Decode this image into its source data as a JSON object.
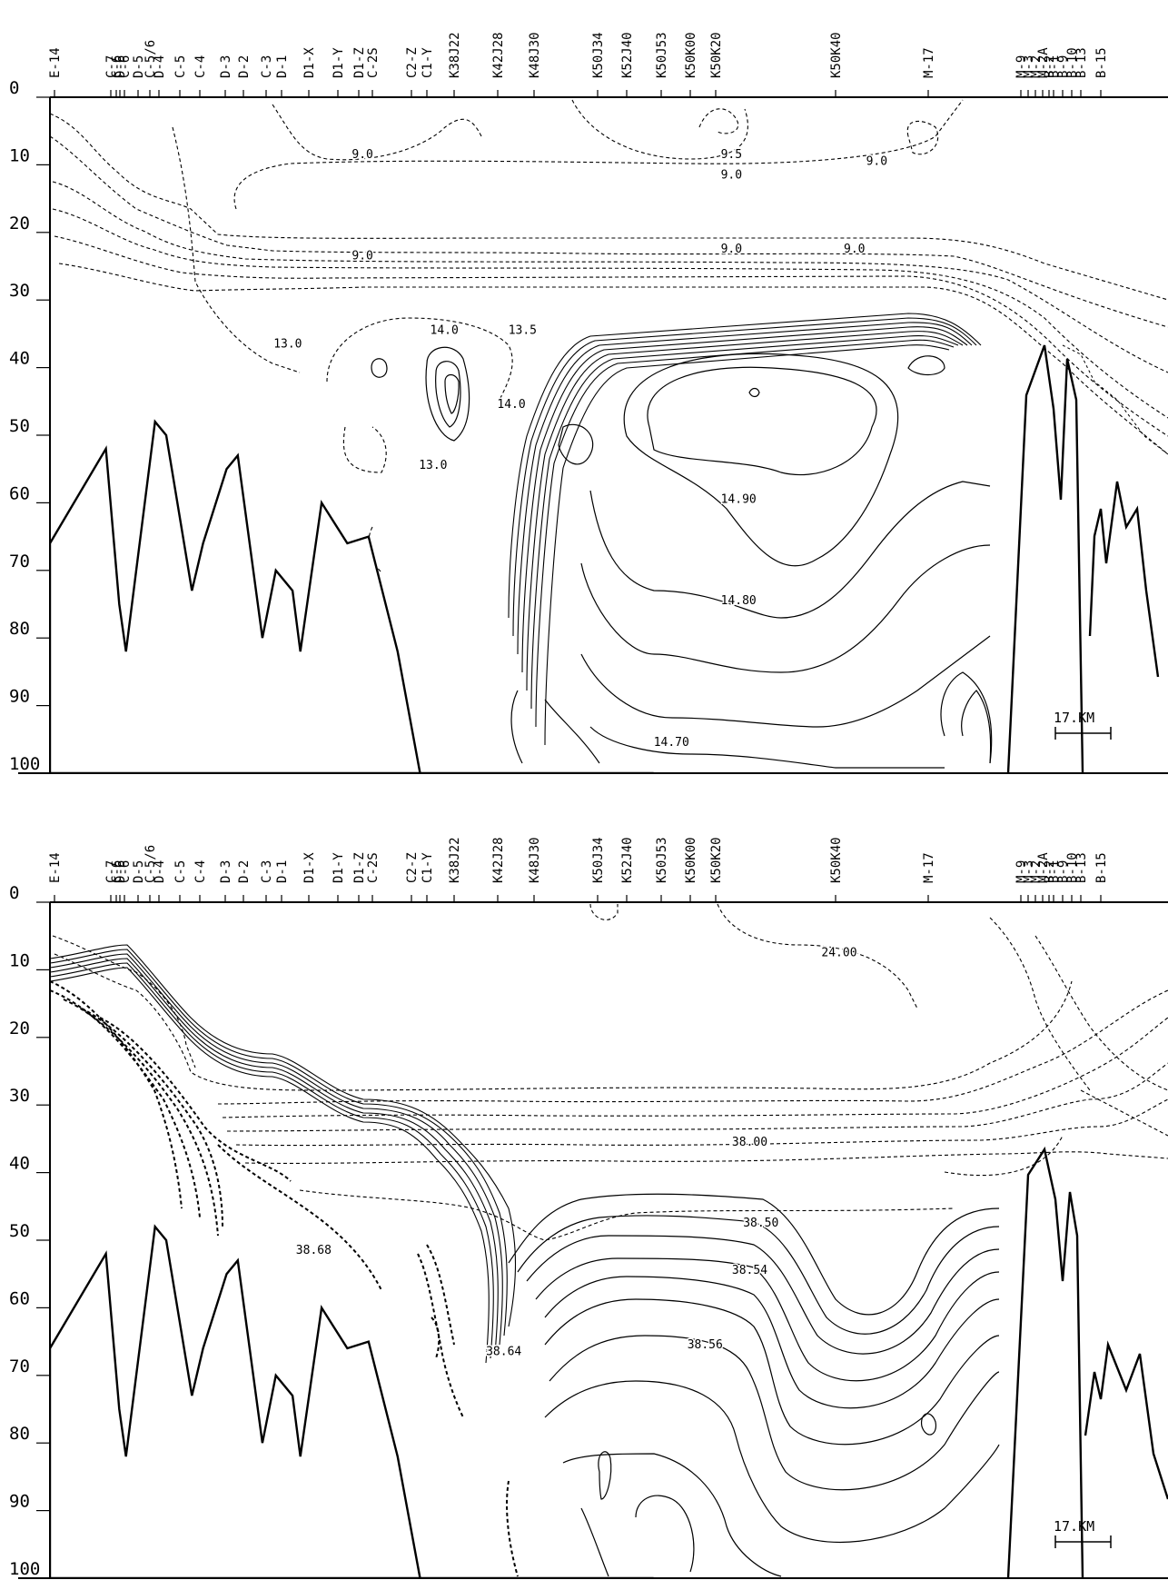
{
  "stations": [
    "E-14",
    "C-7",
    "C-6",
    "D-6",
    "C-6",
    "D-5",
    "C-5/6",
    "D-4",
    "C-5",
    "C-4",
    "D-3",
    "D-2",
    "C-3",
    "D-1",
    "D1-X",
    "D1-Y",
    "D1-Z",
    "C-2S",
    "C2-Z",
    "C1-Y",
    "K38J22",
    "K42J28",
    "K48J30",
    "K50J34",
    "K52J40",
    "K50J53",
    "K50K00",
    "K50K20",
    "K50K40",
    "M-17",
    "M-9",
    "M-3",
    "M-2",
    "M-2A",
    "B-2",
    "B-1",
    "B-9",
    "B-10",
    "B-13",
    "B-15"
  ],
  "depth_axis": {
    "ticks": [
      "0",
      "10",
      "20",
      "30",
      "40",
      "50",
      "60",
      "70",
      "80",
      "90",
      "100"
    ],
    "range": [
      0,
      100
    ]
  },
  "bottom_profile": {
    "stations_x": [
      0,
      0.05,
      0.062,
      0.068,
      0.094,
      0.104,
      0.127,
      0.137,
      0.158,
      0.168,
      0.19,
      0.202,
      0.217,
      0.224,
      0.243,
      0.266,
      0.285,
      0.311,
      0.331,
      0.351,
      0.382,
      0.403,
      0.439,
      0.451,
      0.474,
      0.511,
      0.517,
      0.54
    ],
    "depth": [
      66,
      52,
      75,
      82,
      48,
      50,
      73,
      66,
      55,
      53,
      80,
      70,
      73,
      82,
      60,
      66,
      65,
      82,
      100,
      100,
      100,
      100,
      100,
      100,
      100,
      100,
      100,
      100
    ]
  },
  "charts": [
    {
      "panel": "temperature",
      "contour_labels": [
        {
          "text": "9.0",
          "at": [
            0.27,
            9
          ]
        },
        {
          "text": "9.5",
          "at": [
            0.6,
            9
          ]
        },
        {
          "text": "9.0",
          "at": [
            0.6,
            12
          ]
        },
        {
          "text": "9.0",
          "at": [
            0.73,
            10
          ]
        },
        {
          "text": "9.0",
          "at": [
            0.27,
            24
          ]
        },
        {
          "text": "9.0",
          "at": [
            0.6,
            23
          ]
        },
        {
          "text": "9.0",
          "at": [
            0.71,
            23
          ]
        },
        {
          "text": "13.0",
          "at": [
            0.2,
            37
          ]
        },
        {
          "text": "14.0",
          "at": [
            0.34,
            35
          ]
        },
        {
          "text": "13.5",
          "at": [
            0.41,
            35
          ]
        },
        {
          "text": "14.0",
          "at": [
            0.4,
            46
          ]
        },
        {
          "text": "13.0",
          "at": [
            0.33,
            55
          ]
        },
        {
          "text": "14.90",
          "at": [
            0.6,
            60
          ]
        },
        {
          "text": "14.80",
          "at": [
            0.6,
            75
          ]
        },
        {
          "text": "14.70",
          "at": [
            0.54,
            96
          ]
        }
      ],
      "scale_bar_label": "17.KM"
    },
    {
      "panel": "salinity",
      "contour_labels": [
        {
          "text": "24.00",
          "at": [
            0.69,
            8
          ]
        },
        {
          "text": "38.00",
          "at": [
            0.61,
            36
          ]
        },
        {
          "text": "38.50",
          "at": [
            0.62,
            48
          ]
        },
        {
          "text": "38.54",
          "at": [
            0.61,
            55
          ]
        },
        {
          "text": "38.68",
          "at": [
            0.22,
            52
          ]
        },
        {
          "text": "38.64",
          "at": [
            0.39,
            67
          ]
        },
        {
          "text": "38.56",
          "at": [
            0.57,
            66
          ]
        }
      ],
      "scale_bar_label": "17.KM"
    }
  ]
}
